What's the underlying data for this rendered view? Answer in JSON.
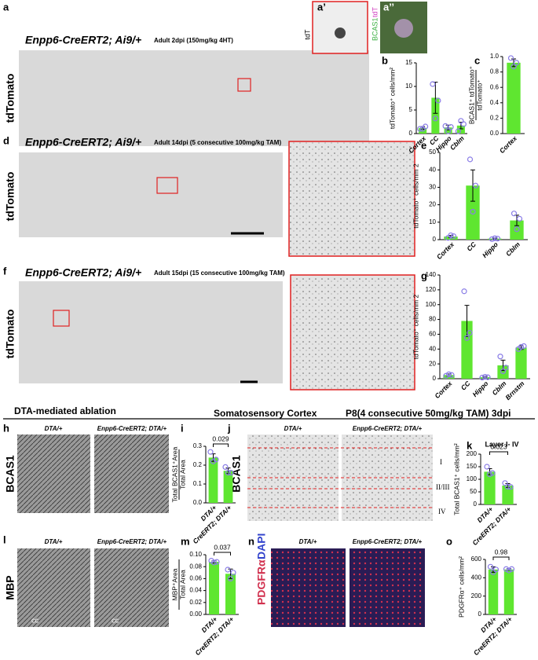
{
  "panel_labels": [
    "a",
    "a’",
    "a’’",
    "b",
    "c",
    "d",
    "e",
    "f",
    "g",
    "h",
    "i",
    "j",
    "k",
    "l",
    "m",
    "n",
    "o"
  ],
  "titles": {
    "a": "Enpp6-CreERT2; Ai9/+",
    "a_note": "Adult 2dpi (150mg/kg 4HT)",
    "d": "Enpp6-CreERT2; Ai9/+",
    "d_note": "Adult 14dpi (5 consecutive 100mg/kg TAM)",
    "f": "Enpp6-CreERT2; Ai9/+",
    "f_note": "Adult 15dpi (15 consecutive 100mg/kg TAM)"
  },
  "section_headers": [
    "DTA-mediated ablation",
    "Somatosensory Cortex",
    "P8(4 consecutive 50mg/kg TAM) 3dpi"
  ],
  "image_labels": {
    "tdTomato": "tdTomato",
    "tdT": "tdT",
    "bcas1_inset": "BCAS1",
    "tdT_inset": "tdT",
    "h_left": "DTA/+",
    "h_right": "Enpp6-CreERT2; DTA/+",
    "bcas1": "BCAS1",
    "j_left": "DTA/+",
    "j_right": "Enpp6-CreERT2; DTA/+",
    "layers": [
      "I",
      "II/III",
      "IV"
    ],
    "l_left": "DTA/+",
    "l_right": "Enpp6-CreERT2; DTA/+",
    "mbp": "MBP",
    "cc": "cc",
    "n_left": "DTA/+",
    "n_right": "Enpp6-CreERT2; DTA/+",
    "pdgfra": "PDGFRα",
    "dapi": "DAPI"
  },
  "chart_data": [
    {
      "type": "bar",
      "ylabel": [
        "tdTomato⁺ cells/mm²"
      ],
      "categories": [
        "Cortex",
        "CC",
        "Hippo",
        "Cblm"
      ],
      "values": [
        1.2,
        7.6,
        1.3,
        1.7
      ],
      "errors": [
        0.3,
        3.3,
        0.5,
        0.7
      ],
      "points": [
        [
          1.0,
          1.0,
          1.5
        ],
        [
          10.5,
          3.2,
          7.0
        ],
        [
          1.6,
          0.5,
          1.4
        ],
        [
          0.5,
          2.7,
          2.0
        ]
      ],
      "ylim": [
        0,
        15
      ],
      "yticks": [
        0,
        5,
        10,
        15
      ],
      "color": "#5fe630",
      "point_color": "#8a7de6"
    },
    {
      "type": "bar",
      "ylabel": [
        "BCAS1⁺ tdTomato⁺",
        "tdTomato⁺"
      ],
      "categories": [
        "Cortex"
      ],
      "values": [
        0.92
      ],
      "errors": [
        0.05
      ],
      "points": [
        [
          0.98,
          0.87,
          0.92
        ]
      ],
      "ylim": [
        0,
        1.0
      ],
      "yticks": [
        {
          "value": 0,
          "label": "0.0"
        },
        0.2,
        0.4,
        0.6,
        0.8,
        {
          "value": 1.0,
          "label": "1.0"
        }
      ],
      "color": "#5fe630",
      "point_color": "#8a7de6"
    },
    {
      "type": "bar",
      "ylabel": [
        "tdTomato⁺ cells/mm 2"
      ],
      "categories": [
        "Cortex",
        "CC",
        "Hippo",
        "Cblm"
      ],
      "values": [
        1.8,
        31,
        0.6,
        11
      ],
      "errors": [
        0.6,
        9,
        0.3,
        3
      ],
      "points": [
        [
          1.0,
          2.5,
          2.0
        ],
        [
          46,
          16,
          31
        ],
        [
          0.3,
          0.8,
          0.6
        ],
        [
          15,
          6,
          12
        ]
      ],
      "ylim": [
        0,
        50
      ],
      "yticks": [
        0,
        10,
        20,
        30,
        40,
        50
      ],
      "color": "#5fe630",
      "point_color": "#8a7de6"
    },
    {
      "type": "bar",
      "ylabel": [
        "tdTomato⁺ cells/mm 2"
      ],
      "categories": [
        "Cortex",
        "CC",
        "Hippo",
        "Cblm",
        "Brnstm"
      ],
      "values": [
        5,
        78,
        2,
        18,
        42
      ],
      "errors": [
        1.5,
        21,
        1,
        7,
        2.5
      ],
      "points": [
        [
          4,
          6,
          5
        ],
        [
          118,
          55,
          62
        ],
        [
          1.5,
          2.5,
          2
        ],
        [
          30,
          10,
          15
        ],
        [
          40,
          43,
          44
        ]
      ],
      "ylim": [
        0,
        140
      ],
      "yticks": [
        0,
        20,
        40,
        60,
        80,
        100,
        120,
        140
      ],
      "color": "#5fe630",
      "point_color": "#8a7de6"
    },
    {
      "type": "bar",
      "ylabel": [
        "Total BCAS1⁺Area",
        "Total Area"
      ],
      "categories": [
        "DTA/+",
        "CreERT2; DTA/+"
      ],
      "values": [
        0.24,
        0.17
      ],
      "errors": [
        0.02,
        0.015
      ],
      "points": [
        [
          0.27,
          0.22,
          0.23
        ],
        [
          0.19,
          0.16,
          0.16
        ]
      ],
      "ylim": [
        0,
        0.3
      ],
      "yticks": [
        {
          "value": 0,
          "label": "0.0"
        },
        0.1,
        0.2,
        0.3
      ],
      "p_value": "0.029",
      "color": "#5fe630",
      "point_color": "#8a7de6"
    },
    {
      "type": "bar",
      "title": "Layer I- IV",
      "ylabel": [
        "Total BCAS1⁺ cells/mm²"
      ],
      "categories": [
        "DTA/+",
        "CreERT2; DTA/+"
      ],
      "values": [
        130,
        75
      ],
      "errors": [
        12,
        8
      ],
      "points": [
        [
          150,
          120,
          125
        ],
        [
          85,
          70,
          70
        ]
      ],
      "ylim": [
        0,
        200
      ],
      "yticks": [
        0,
        50,
        100,
        150,
        200
      ],
      "p_value": "0.023",
      "color": "#5fe630",
      "point_color": "#8a7de6"
    },
    {
      "type": "bar",
      "ylabel": [
        "MBP⁺Area",
        "Total Area"
      ],
      "categories": [
        "DTA/+",
        "CreERT2; DTA/+"
      ],
      "values": [
        0.088,
        0.068
      ],
      "errors": [
        0.002,
        0.008
      ],
      "points": [
        [
          0.09,
          0.087,
          0.088
        ],
        [
          0.075,
          0.06,
          0.07
        ]
      ],
      "ylim": [
        0,
        0.1
      ],
      "yticks": [
        {
          "value": 0,
          "label": "0.00"
        },
        0.02,
        0.04,
        0.06,
        0.08,
        {
          "value": 0.1,
          "label": "0.10"
        }
      ],
      "p_value": "0.037",
      "color": "#5fe630",
      "point_color": "#8a7de6"
    },
    {
      "type": "bar",
      "ylabel": [
        "PDGFRα⁺ cells/mm²"
      ],
      "categories": [
        "DTA/+",
        "CreERT2; DTA/+"
      ],
      "values": [
        490,
        490
      ],
      "errors": [
        30,
        10
      ],
      "points": [
        [
          520,
          460,
          490
        ],
        [
          495,
          480,
          495
        ]
      ],
      "ylim": [
        0,
        600
      ],
      "yticks": [
        0,
        200,
        400,
        600
      ],
      "p_value": "0.98",
      "color": "#5fe630",
      "point_color": "#8a7de6"
    }
  ]
}
